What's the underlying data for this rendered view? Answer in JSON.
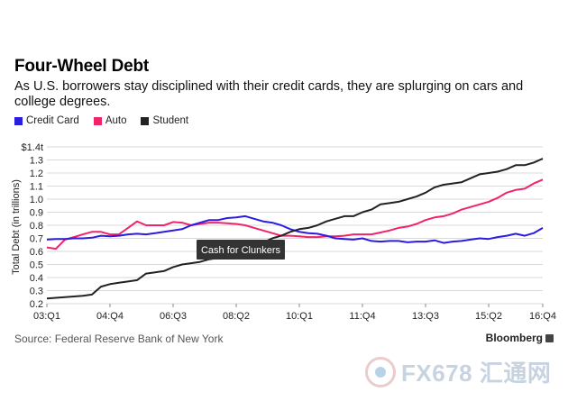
{
  "header": {
    "title": "Four-Wheel Debt",
    "subtitle": "As U.S. borrowers stay disciplined with their credit cards, they are splurging on cars and college degrees."
  },
  "footer": {
    "source": "Source: Federal Reserve Bank of New York",
    "brand": "Bloomberg"
  },
  "watermark": {
    "text": "FX678 汇通网"
  },
  "colors": {
    "credit_card": "#2b1de0",
    "auto": "#f0236b",
    "student": "#222222",
    "gridline": "#d9d9d9"
  },
  "chart_data": {
    "type": "line",
    "ylabel": "Total Debt (in trillions)",
    "ylim": [
      0.2,
      1.4
    ],
    "y_ticks": [
      "0.2",
      "0.3",
      "0.4",
      "0.5",
      "0.6",
      "0.7",
      "0.8",
      "0.9",
      "1.0",
      "1.1",
      "1.2",
      "1.3",
      "$1.4t"
    ],
    "x_tick_labels": [
      "03:Q1",
      "04:Q4",
      "06:Q3",
      "08:Q2",
      "10:Q1",
      "11:Q4",
      "13:Q3",
      "15:Q2",
      "16:Q4"
    ],
    "x_tick_index": [
      0,
      7,
      14,
      21,
      28,
      35,
      42,
      49,
      55
    ],
    "grid": true,
    "legend_position": "top-left",
    "annotation": {
      "text": "Cash for Clunkers",
      "at_index": 26
    },
    "series": [
      {
        "name": "Credit Card",
        "color": "#2b1de0",
        "values": [
          0.69,
          0.695,
          0.695,
          0.7,
          0.7,
          0.705,
          0.72,
          0.715,
          0.72,
          0.73,
          0.735,
          0.73,
          0.74,
          0.75,
          0.76,
          0.77,
          0.8,
          0.82,
          0.84,
          0.84,
          0.855,
          0.86,
          0.87,
          0.85,
          0.83,
          0.82,
          0.8,
          0.77,
          0.75,
          0.74,
          0.735,
          0.72,
          0.7,
          0.695,
          0.69,
          0.7,
          0.68,
          0.675,
          0.68,
          0.68,
          0.67,
          0.675,
          0.675,
          0.685,
          0.665,
          0.675,
          0.68,
          0.69,
          0.7,
          0.695,
          0.71,
          0.72,
          0.735,
          0.72,
          0.74,
          0.78
        ]
      },
      {
        "name": "Auto",
        "color": "#f0236b",
        "values": [
          0.63,
          0.62,
          0.69,
          0.71,
          0.73,
          0.75,
          0.75,
          0.73,
          0.73,
          0.78,
          0.83,
          0.8,
          0.8,
          0.8,
          0.825,
          0.82,
          0.8,
          0.81,
          0.82,
          0.82,
          0.815,
          0.81,
          0.8,
          0.78,
          0.76,
          0.74,
          0.72,
          0.72,
          0.715,
          0.71,
          0.71,
          0.715,
          0.715,
          0.72,
          0.73,
          0.73,
          0.73,
          0.745,
          0.76,
          0.78,
          0.79,
          0.81,
          0.84,
          0.86,
          0.87,
          0.89,
          0.92,
          0.94,
          0.96,
          0.98,
          1.01,
          1.05,
          1.07,
          1.08,
          1.12,
          1.15
        ]
      },
      {
        "name": "Student",
        "color": "#222222",
        "values": [
          0.24,
          0.245,
          0.25,
          0.255,
          0.26,
          0.27,
          0.33,
          0.35,
          0.36,
          0.37,
          0.38,
          0.43,
          0.44,
          0.45,
          0.48,
          0.5,
          0.51,
          0.52,
          0.54,
          0.55,
          0.57,
          0.6,
          0.62,
          0.64,
          0.67,
          0.7,
          0.72,
          0.75,
          0.77,
          0.78,
          0.8,
          0.83,
          0.85,
          0.87,
          0.87,
          0.9,
          0.92,
          0.96,
          0.97,
          0.98,
          1.0,
          1.02,
          1.05,
          1.09,
          1.11,
          1.12,
          1.13,
          1.16,
          1.19,
          1.2,
          1.21,
          1.23,
          1.26,
          1.26,
          1.28,
          1.31
        ]
      }
    ]
  }
}
